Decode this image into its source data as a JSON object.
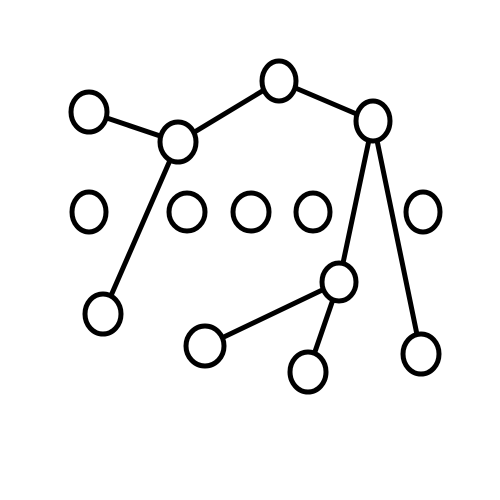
{
  "diagram": {
    "stroke_color": "#000000",
    "fill_color": "#ffffff",
    "nodes": [
      {
        "id": "n1"
      },
      {
        "id": "n2"
      },
      {
        "id": "n3"
      },
      {
        "id": "n4"
      },
      {
        "id": "n5"
      },
      {
        "id": "n6"
      },
      {
        "id": "n7"
      },
      {
        "id": "n8"
      },
      {
        "id": "n9"
      },
      {
        "id": "n10"
      },
      {
        "id": "n11"
      },
      {
        "id": "n12"
      },
      {
        "id": "n13"
      },
      {
        "id": "n14"
      },
      {
        "id": "n15"
      }
    ],
    "edges": [
      {
        "from": "n1",
        "to": "n2"
      },
      {
        "from": "n2",
        "to": "n3"
      },
      {
        "from": "n3",
        "to": "n4"
      },
      {
        "from": "n2",
        "to": "n10"
      },
      {
        "from": "n4",
        "to": "n11"
      },
      {
        "from": "n4",
        "to": "n15"
      },
      {
        "from": "n11",
        "to": "n12"
      },
      {
        "from": "n11",
        "to": "n13"
      }
    ]
  }
}
